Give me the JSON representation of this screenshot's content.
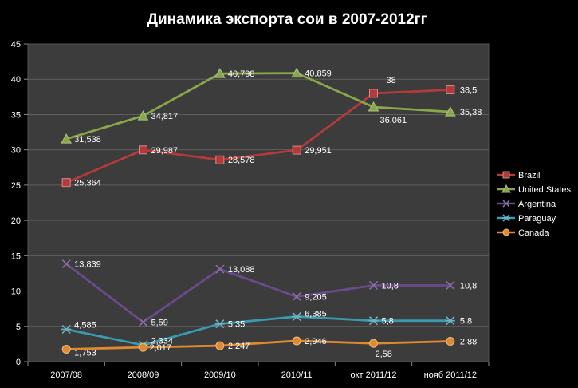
{
  "chart_data": {
    "type": "line",
    "title": "Динамика экспорта сои в 2007-2012гг",
    "xlabel": "",
    "ylabel": "",
    "categories": [
      "2007/08",
      "2008/09",
      "2009/10",
      "2010/11",
      "окт 2011/12",
      "нояб 2011/12"
    ],
    "ylim": [
      0,
      45
    ],
    "yticks": [
      0,
      5,
      10,
      15,
      20,
      25,
      30,
      35,
      40,
      45
    ],
    "grid": true,
    "legend_position": "right",
    "series": [
      {
        "name": "Brazil",
        "values": [
          25.364,
          29.987,
          28.578,
          29.951,
          38,
          38.5
        ],
        "labels": [
          "25,364",
          "29,987",
          "28,578",
          "29,951",
          "38",
          "38,5"
        ],
        "color": "#b33a3a",
        "marker": "square"
      },
      {
        "name": "United States",
        "values": [
          31.538,
          34.817,
          40.798,
          40.859,
          36.061,
          35.38
        ],
        "labels": [
          "31,538",
          "34,817",
          "40,798",
          "40,859",
          "36,061",
          "35,38"
        ],
        "color": "#8aa64a",
        "marker": "triangle"
      },
      {
        "name": "Argentina",
        "values": [
          13.839,
          5.59,
          13.088,
          9.205,
          10.8,
          10.8
        ],
        "labels": [
          "13,839",
          "5,59",
          "13,088",
          "9,205",
          "10,8",
          "10,8"
        ],
        "color": "#6a4a8c",
        "marker": "x"
      },
      {
        "name": "Paraguay",
        "values": [
          4.585,
          2.334,
          5.35,
          6.385,
          5.8,
          5.8
        ],
        "labels": [
          "4,585",
          "2,334",
          "5,35",
          "6,385",
          "5,8",
          "5,8"
        ],
        "color": "#3a9ab0",
        "marker": "star"
      },
      {
        "name": "Canada",
        "values": [
          1.753,
          2.017,
          2.247,
          2.946,
          2.58,
          2.88
        ],
        "labels": [
          "1,753",
          "2,017",
          "2,247",
          "2,946",
          "2,58",
          "2,88"
        ],
        "color": "#e08a30",
        "marker": "circle"
      }
    ]
  }
}
